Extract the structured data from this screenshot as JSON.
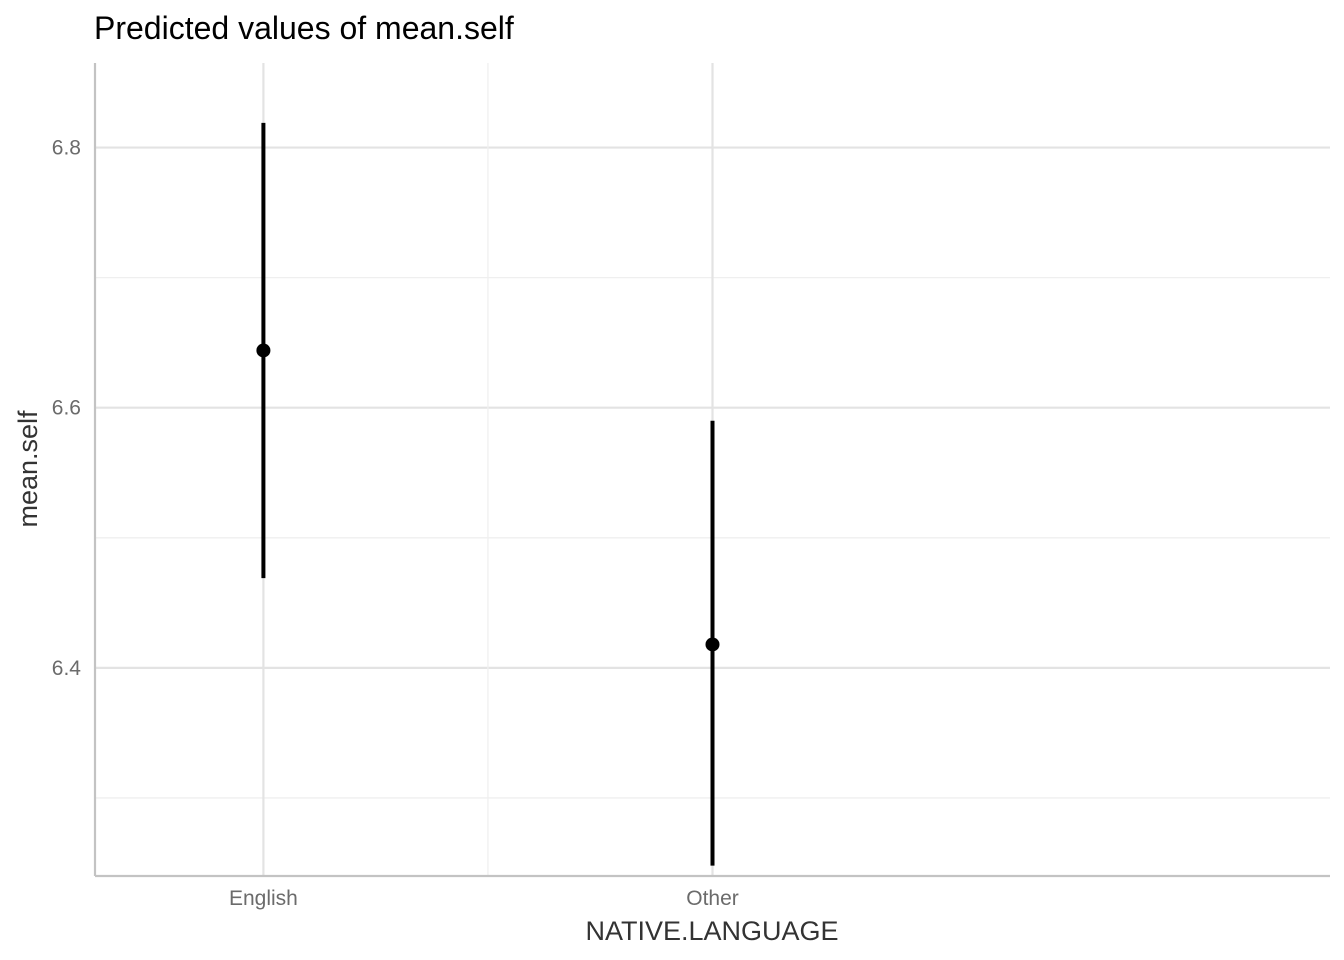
{
  "chart_data": {
    "type": "scatter",
    "title": "Predicted values of mean.self",
    "xlabel": "NATIVE.LANGUAGE",
    "ylabel": "mean.self",
    "categories": [
      "English",
      "Other"
    ],
    "series": [
      {
        "values": [
          6.644,
          6.418
        ],
        "ci_low": [
          6.469,
          6.248
        ],
        "ci_high": [
          6.819,
          6.59
        ]
      }
    ],
    "ylim": [
      6.24,
      6.865
    ],
    "y_ticks": [
      "6.4",
      "6.6",
      "6.8"
    ],
    "grid": true,
    "legend": "none"
  }
}
